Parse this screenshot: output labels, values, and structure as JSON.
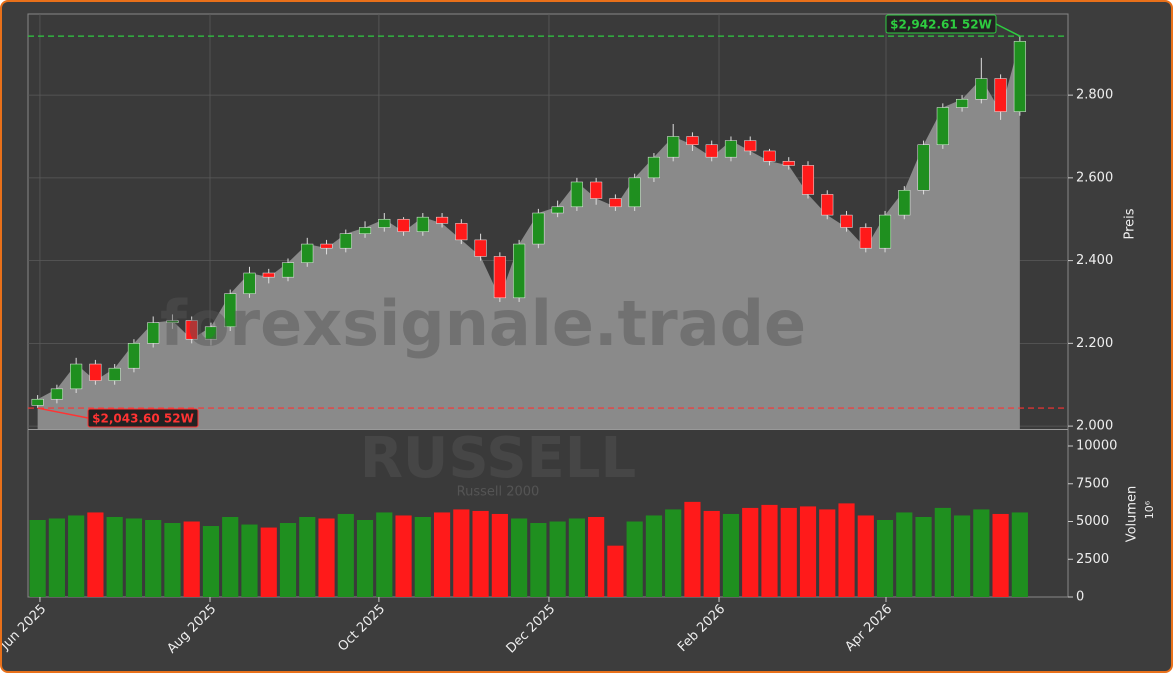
{
  "chart_data": {
    "type": "candlestick",
    "watermark": "forexsignale.trade",
    "watermark_symbol": "RUSSELL",
    "watermark_name": "Russell 2000",
    "ylabel": "Preis",
    "y2label": "Volumen",
    "y2_unit": "10⁶",
    "up_color": "#1f8f1f",
    "down_color": "#ff1a1a",
    "area_color": "#8a8a8a",
    "grid": true,
    "xlim": [
      -0.5,
      53.5
    ],
    "xticks": [
      {
        "value": 0.12,
        "label": "Jun 2025"
      },
      {
        "value": 8.95,
        "label": "Aug 2025"
      },
      {
        "value": 17.72,
        "label": "Oct 2025"
      },
      {
        "value": 26.55,
        "label": "Dec 2025"
      },
      {
        "value": 35.38,
        "label": "Feb 2026"
      },
      {
        "value": 44.05,
        "label": "Apr 2026"
      }
    ],
    "ylim": [
      1993,
      2996
    ],
    "yticks": [
      {
        "value": 2000,
        "label": "2.000"
      },
      {
        "value": 2200,
        "label": "2.200"
      },
      {
        "value": 2400,
        "label": "2.400"
      },
      {
        "value": 2600,
        "label": "2.600"
      },
      {
        "value": 2800,
        "label": "2.800"
      }
    ],
    "y2lim": [
      0,
      11060
    ],
    "y2ticks": [
      0,
      2500,
      5000,
      7500,
      10000
    ],
    "open": [
      2050,
      2065,
      2090,
      2150,
      2110,
      2140,
      2200,
      2250,
      2255,
      2210,
      2240,
      2320,
      2370,
      2360,
      2395,
      2440,
      2430,
      2465,
      2480,
      2500,
      2470,
      2505,
      2490,
      2450,
      2410,
      2310,
      2440,
      2515,
      2530,
      2590,
      2550,
      2530,
      2600,
      2650,
      2700,
      2680,
      2650,
      2690,
      2665,
      2640,
      2630,
      2560,
      2510,
      2480,
      2430,
      2510,
      2570,
      2680,
      2770,
      2790,
      2840,
      2760
    ],
    "high": [
      2075,
      2100,
      2165,
      2160,
      2150,
      2210,
      2265,
      2270,
      2265,
      2250,
      2330,
      2385,
      2380,
      2405,
      2455,
      2450,
      2475,
      2495,
      2515,
      2505,
      2515,
      2515,
      2500,
      2465,
      2420,
      2450,
      2525,
      2545,
      2600,
      2600,
      2560,
      2610,
      2660,
      2730,
      2710,
      2690,
      2700,
      2700,
      2670,
      2650,
      2640,
      2570,
      2520,
      2490,
      2520,
      2580,
      2690,
      2780,
      2800,
      2890,
      2850,
      2942.61
    ],
    "low": [
      2043.6,
      2055,
      2080,
      2100,
      2100,
      2130,
      2190,
      2235,
      2200,
      2195,
      2230,
      2310,
      2345,
      2350,
      2385,
      2415,
      2420,
      2455,
      2470,
      2460,
      2460,
      2480,
      2440,
      2400,
      2300,
      2300,
      2430,
      2505,
      2520,
      2535,
      2520,
      2520,
      2590,
      2640,
      2665,
      2640,
      2640,
      2655,
      2630,
      2620,
      2550,
      2500,
      2470,
      2420,
      2420,
      2500,
      2560,
      2670,
      2760,
      2780,
      2740,
      2750
    ],
    "close": [
      2065,
      2090,
      2150,
      2110,
      2140,
      2200,
      2250,
      2255,
      2210,
      2240,
      2320,
      2370,
      2360,
      2395,
      2440,
      2430,
      2465,
      2480,
      2500,
      2470,
      2505,
      2490,
      2450,
      2410,
      2310,
      2440,
      2515,
      2530,
      2590,
      2550,
      2530,
      2600,
      2650,
      2700,
      2680,
      2650,
      2690,
      2665,
      2640,
      2630,
      2560,
      2510,
      2480,
      2430,
      2510,
      2570,
      2680,
      2770,
      2790,
      2840,
      2760,
      2930
    ],
    "volume": [
      5100,
      5200,
      5400,
      5600,
      5300,
      5200,
      5100,
      4900,
      5000,
      4700,
      5300,
      4800,
      4600,
      4900,
      5300,
      5200,
      5500,
      5100,
      5600,
      5400,
      5300,
      5600,
      5800,
      5700,
      5500,
      5200,
      4900,
      5000,
      5200,
      5300,
      3400,
      5000,
      5400,
      5800,
      6300,
      5700,
      5500,
      5900,
      6100,
      5900,
      6000,
      5800,
      6200,
      5400,
      5100,
      5600,
      5300,
      5900,
      5400,
      5800,
      5500,
      5600
    ],
    "annotations": [
      {
        "text": "$2,942.61 52W",
        "value": 2942.61,
        "color": "#2ecc40"
      },
      {
        "text": "$2,043.60 52W",
        "value": 2043.6,
        "color": "#ff3333"
      }
    ]
  }
}
